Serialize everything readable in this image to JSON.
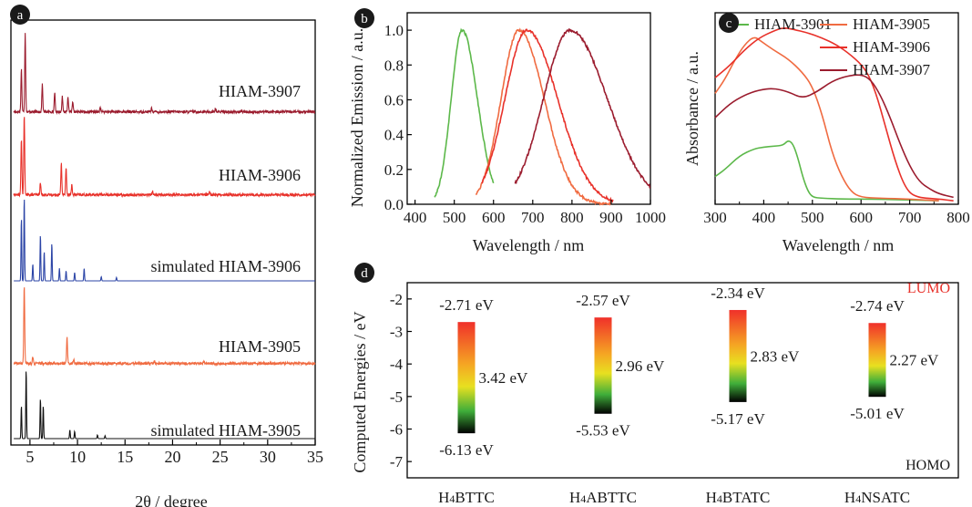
{
  "panels": {
    "a": {
      "letter": "a"
    },
    "b": {
      "letter": "b"
    },
    "c": {
      "letter": "c"
    },
    "d": {
      "letter": "d"
    }
  },
  "chart_data": [
    {
      "panel": "a",
      "type": "line",
      "xlabel": "2θ / degree",
      "ylabel": "",
      "xlim": [
        3,
        35
      ],
      "xticks": [
        "5",
        "10",
        "15",
        "20",
        "25",
        "30",
        "35"
      ],
      "series": [
        {
          "name": "HIAM-3907",
          "color": "#9b1c2e",
          "kind": "experimental",
          "peaks": [
            [
              4.1,
              0.55
            ],
            [
              4.5,
              1.0
            ],
            [
              6.3,
              0.35
            ],
            [
              7.6,
              0.25
            ],
            [
              8.4,
              0.2
            ],
            [
              9.0,
              0.2
            ],
            [
              9.5,
              0.12
            ],
            [
              12.4,
              0.06
            ],
            [
              17.8,
              0.05
            ],
            [
              24.5,
              0.04
            ]
          ]
        },
        {
          "name": "HIAM-3906",
          "color": "#e8312a",
          "kind": "experimental",
          "peaks": [
            [
              4.1,
              0.7
            ],
            [
              4.4,
              1.0
            ],
            [
              6.1,
              0.15
            ],
            [
              8.3,
              0.4
            ],
            [
              8.8,
              0.35
            ],
            [
              9.4,
              0.12
            ],
            [
              17.9,
              0.05
            ],
            [
              23.9,
              0.04
            ]
          ]
        },
        {
          "name": "simulated HIAM-3906",
          "color": "#2b44a6",
          "kind": "simulated",
          "peaks": [
            [
              4.1,
              0.75
            ],
            [
              4.4,
              1.0
            ],
            [
              5.3,
              0.2
            ],
            [
              6.1,
              0.55
            ],
            [
              6.5,
              0.35
            ],
            [
              7.3,
              0.45
            ],
            [
              8.1,
              0.15
            ],
            [
              8.8,
              0.12
            ],
            [
              9.7,
              0.1
            ],
            [
              10.7,
              0.15
            ],
            [
              12.5,
              0.05
            ],
            [
              14.1,
              0.04
            ]
          ]
        },
        {
          "name": "HIAM-3905",
          "color": "#f06b41",
          "kind": "experimental",
          "peaks": [
            [
              4.4,
              1.0
            ],
            [
              5.3,
              0.08
            ],
            [
              8.9,
              0.35
            ],
            [
              9.6,
              0.05
            ],
            [
              18.1,
              0.03
            ],
            [
              23.3,
              0.03
            ]
          ]
        },
        {
          "name": "simulated HIAM-3905",
          "color": "#111111",
          "kind": "simulated",
          "peaks": [
            [
              4.1,
              0.45
            ],
            [
              4.6,
              0.95
            ],
            [
              6.1,
              0.55
            ],
            [
              6.4,
              0.45
            ],
            [
              9.2,
              0.12
            ],
            [
              9.7,
              0.1
            ],
            [
              12.1,
              0.05
            ],
            [
              12.9,
              0.04
            ]
          ]
        }
      ]
    },
    {
      "panel": "b",
      "type": "line",
      "xlabel": "Wavelength / nm",
      "ylabel": "Normalized Emission / a.u.",
      "xlim": [
        380,
        1000
      ],
      "ylim": [
        0,
        1.1
      ],
      "xticks": [
        "400",
        "500",
        "600",
        "700",
        "800",
        "900",
        "1000"
      ],
      "yticks": [
        "0.0",
        "0.2",
        "0.4",
        "0.6",
        "0.8",
        "1.0"
      ],
      "series": [
        {
          "color": "#5cb84a",
          "peak": 520,
          "fwhm": 82,
          "start": 450,
          "end": 600
        },
        {
          "color": "#f06b41",
          "peak": 665,
          "fwhm": 135,
          "start": 555,
          "end": 900
        },
        {
          "color": "#e8312a",
          "peak": 685,
          "fwhm": 165,
          "start": 570,
          "end": 905
        },
        {
          "color": "#9b1c2e",
          "peak": 795,
          "fwhm": 200,
          "start": 655,
          "end": 1000
        }
      ]
    },
    {
      "panel": "c",
      "type": "line",
      "xlabel": "Wavelength / nm",
      "ylabel": "Absorbance / a.u.",
      "xlim": [
        300,
        800
      ],
      "xticks": [
        "300",
        "400",
        "500",
        "600",
        "700",
        "800"
      ],
      "legend_position": "top-right",
      "series": [
        {
          "name": "HIAM-3901",
          "color": "#5cb84a",
          "points": [
            [
              300,
              0.16
            ],
            [
              320,
              0.2
            ],
            [
              350,
              0.28
            ],
            [
              380,
              0.32
            ],
            [
              400,
              0.33
            ],
            [
              420,
              0.335
            ],
            [
              440,
              0.34
            ],
            [
              450,
              0.37
            ],
            [
              460,
              0.35
            ],
            [
              470,
              0.27
            ],
            [
              480,
              0.16
            ],
            [
              490,
              0.08
            ],
            [
              500,
              0.04
            ],
            [
              520,
              0.035
            ],
            [
              560,
              0.03
            ],
            [
              620,
              0.03
            ],
            [
              700,
              0.025
            ],
            [
              760,
              0.02
            ]
          ]
        },
        {
          "name": "HIAM-3905",
          "color": "#f06b41",
          "points": [
            [
              300,
              0.64
            ],
            [
              320,
              0.72
            ],
            [
              340,
              0.83
            ],
            [
              360,
              0.92
            ],
            [
              380,
              0.97
            ],
            [
              395,
              0.94
            ],
            [
              420,
              0.89
            ],
            [
              450,
              0.84
            ],
            [
              480,
              0.76
            ],
            [
              500,
              0.68
            ],
            [
              520,
              0.52
            ],
            [
              540,
              0.3
            ],
            [
              560,
              0.16
            ],
            [
              580,
              0.07
            ],
            [
              600,
              0.04
            ],
            [
              640,
              0.035
            ],
            [
              700,
              0.03
            ],
            [
              760,
              0.02
            ]
          ]
        },
        {
          "name": "HIAM-3906",
          "color": "#e8312a",
          "points": [
            [
              300,
              0.73
            ],
            [
              330,
              0.8
            ],
            [
              360,
              0.89
            ],
            [
              390,
              0.96
            ],
            [
              420,
              1.0
            ],
            [
              440,
              1.02
            ],
            [
              460,
              1.01
            ],
            [
              490,
              0.99
            ],
            [
              520,
              0.96
            ],
            [
              550,
              0.92
            ],
            [
              580,
              0.86
            ],
            [
              610,
              0.78
            ],
            [
              630,
              0.65
            ],
            [
              650,
              0.45
            ],
            [
              670,
              0.25
            ],
            [
              690,
              0.1
            ],
            [
              710,
              0.04
            ],
            [
              760,
              0.03
            ],
            [
              790,
              0.02
            ]
          ]
        },
        {
          "name": "HIAM-3907",
          "color": "#9b1c2e",
          "points": [
            [
              300,
              0.5
            ],
            [
              330,
              0.58
            ],
            [
              360,
              0.63
            ],
            [
              390,
              0.66
            ],
            [
              420,
              0.67
            ],
            [
              450,
              0.65
            ],
            [
              480,
              0.61
            ],
            [
              510,
              0.65
            ],
            [
              540,
              0.71
            ],
            [
              570,
              0.74
            ],
            [
              600,
              0.75
            ],
            [
              620,
              0.72
            ],
            [
              640,
              0.63
            ],
            [
              660,
              0.5
            ],
            [
              680,
              0.35
            ],
            [
              700,
              0.22
            ],
            [
              720,
              0.13
            ],
            [
              740,
              0.09
            ],
            [
              760,
              0.06
            ],
            [
              790,
              0.04
            ]
          ]
        }
      ]
    },
    {
      "panel": "d",
      "type": "bar",
      "ylabel": "Computed Energies / eV",
      "ylim": [
        -7.5,
        -1.5
      ],
      "yticks": [
        "-2",
        "-3",
        "-4",
        "-5",
        "-6",
        "-7"
      ],
      "lumo_label": "LUMO",
      "homo_label": "HOMO",
      "lumo_color": "#e8312a",
      "categories": [
        {
          "name_prefix": "H",
          "sub": "4",
          "name_rest": "BTTC",
          "lumo": -2.71,
          "homo": -6.13,
          "lumo_label": "-2.71 eV",
          "homo_label": "-6.13 eV",
          "gap_label": "3.42 eV"
        },
        {
          "name_prefix": "H",
          "sub": "4",
          "name_rest": "ABTTC",
          "lumo": -2.57,
          "homo": -5.53,
          "lumo_label": "-2.57 eV",
          "homo_label": "-5.53 eV",
          "gap_label": "2.96 eV"
        },
        {
          "name_prefix": "H",
          "sub": "4",
          "name_rest": "BTATC",
          "lumo": -2.34,
          "homo": -5.17,
          "lumo_label": "-2.34 eV",
          "homo_label": "-5.17 eV",
          "gap_label": "2.83 eV"
        },
        {
          "name_prefix": "H",
          "sub": "4",
          "name_rest": "NSATC",
          "lumo": -2.74,
          "homo": -5.01,
          "lumo_label": "-2.74 eV",
          "homo_label": "-5.01 eV",
          "gap_label": "2.27 eV"
        }
      ]
    }
  ]
}
